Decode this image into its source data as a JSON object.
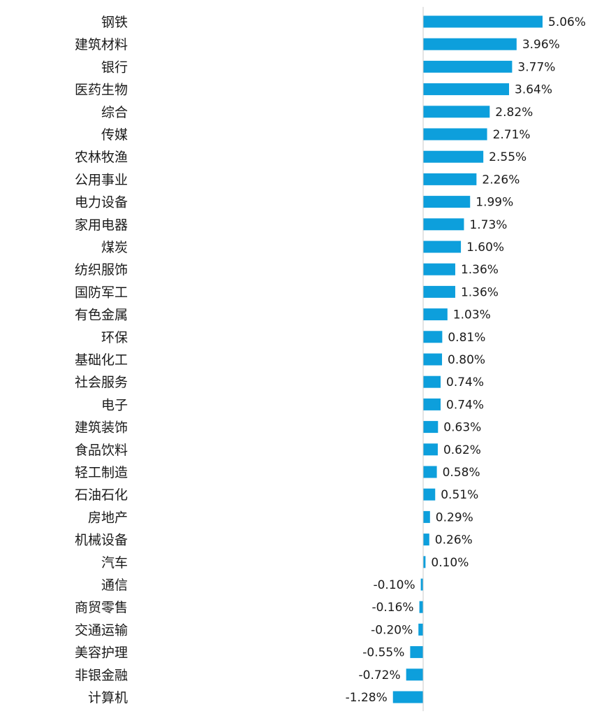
{
  "chart_data": {
    "type": "bar",
    "orientation": "horizontal",
    "title": "",
    "xlabel": "",
    "ylabel": "",
    "bar_color": "#0d9fdc",
    "value_format": "percent",
    "grid": false,
    "legend": "none",
    "xlim": [
      -1.28,
      5.06
    ],
    "categories": [
      "钢铁",
      "建筑材料",
      "银行",
      "医药生物",
      "综合",
      "传媒",
      "农林牧渔",
      "公用事业",
      "电力设备",
      "家用电器",
      "煤炭",
      "纺织服饰",
      "国防军工",
      "有色金属",
      "环保",
      "基础化工",
      "社会服务",
      "电子",
      "建筑装饰",
      "食品饮料",
      "轻工制造",
      "石油石化",
      "房地产",
      "机械设备",
      "汽车",
      "通信",
      "商贸零售",
      "交通运输",
      "美容护理",
      "非银金融",
      "计算机"
    ],
    "values": [
      5.06,
      3.96,
      3.77,
      3.64,
      2.82,
      2.71,
      2.55,
      2.26,
      1.99,
      1.73,
      1.6,
      1.36,
      1.36,
      1.03,
      0.81,
      0.8,
      0.74,
      0.74,
      0.63,
      0.62,
      0.58,
      0.51,
      0.29,
      0.26,
      0.1,
      -0.1,
      -0.16,
      -0.2,
      -0.55,
      -0.72,
      -1.28
    ],
    "value_labels": [
      "5.06%",
      "3.96%",
      "3.77%",
      "3.64%",
      "2.82%",
      "2.71%",
      "2.55%",
      "2.26%",
      "1.99%",
      "1.73%",
      "1.60%",
      "1.36%",
      "1.36%",
      "1.03%",
      "0.81%",
      "0.80%",
      "0.74%",
      "0.74%",
      "0.63%",
      "0.62%",
      "0.58%",
      "0.51%",
      "0.29%",
      "0.26%",
      "0.10%",
      "-0.10%",
      "-0.16%",
      "-0.20%",
      "-0.55%",
      "-0.72%",
      "-1.28%"
    ]
  }
}
